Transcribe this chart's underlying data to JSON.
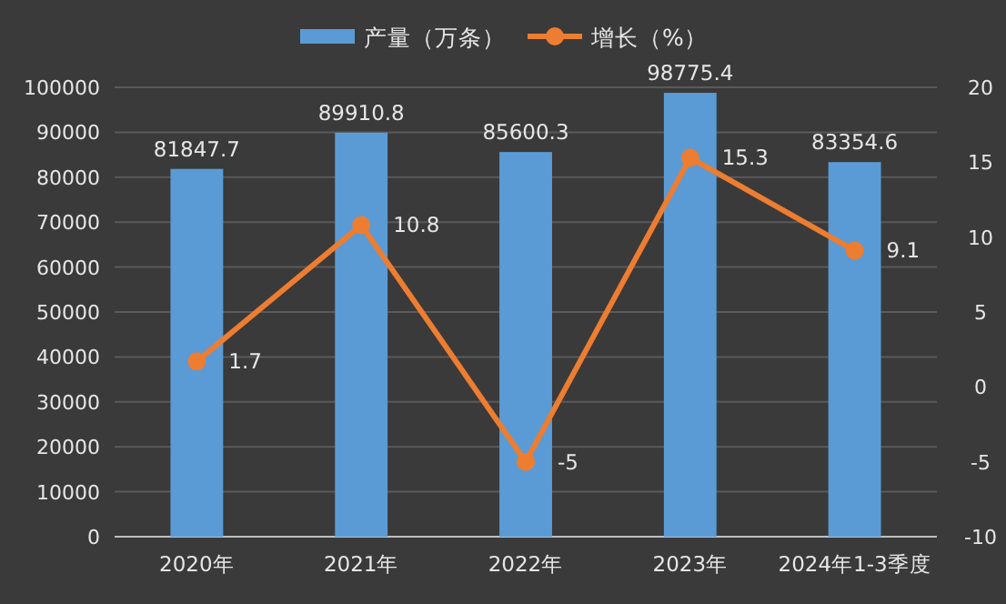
{
  "chart_data": {
    "type": "bar",
    "categories": [
      "2020年",
      "2021年",
      "2022年",
      "2023年",
      "2024年1-3季度"
    ],
    "series": [
      {
        "name": "产量（万条）",
        "color": "#5b9bd5",
        "values": [
          81847.7,
          89910.8,
          85600.3,
          98775.4,
          83354.6
        ]
      },
      {
        "name": "增长（%）",
        "type": "line",
        "axis": "y2",
        "color": "#ed7d31",
        "values": [
          1.7,
          10.8,
          -5,
          15.3,
          9.1
        ]
      }
    ],
    "ylim": [
      0,
      100000
    ],
    "yticks": [
      0,
      10000,
      20000,
      30000,
      40000,
      50000,
      60000,
      70000,
      80000,
      90000,
      100000
    ],
    "y2lim": [
      -10,
      20
    ],
    "y2ticks": [
      -10,
      -5,
      0,
      5,
      10,
      15,
      20
    ],
    "data_labels": true,
    "grid": "y",
    "legend": "top",
    "marker": "circle"
  }
}
